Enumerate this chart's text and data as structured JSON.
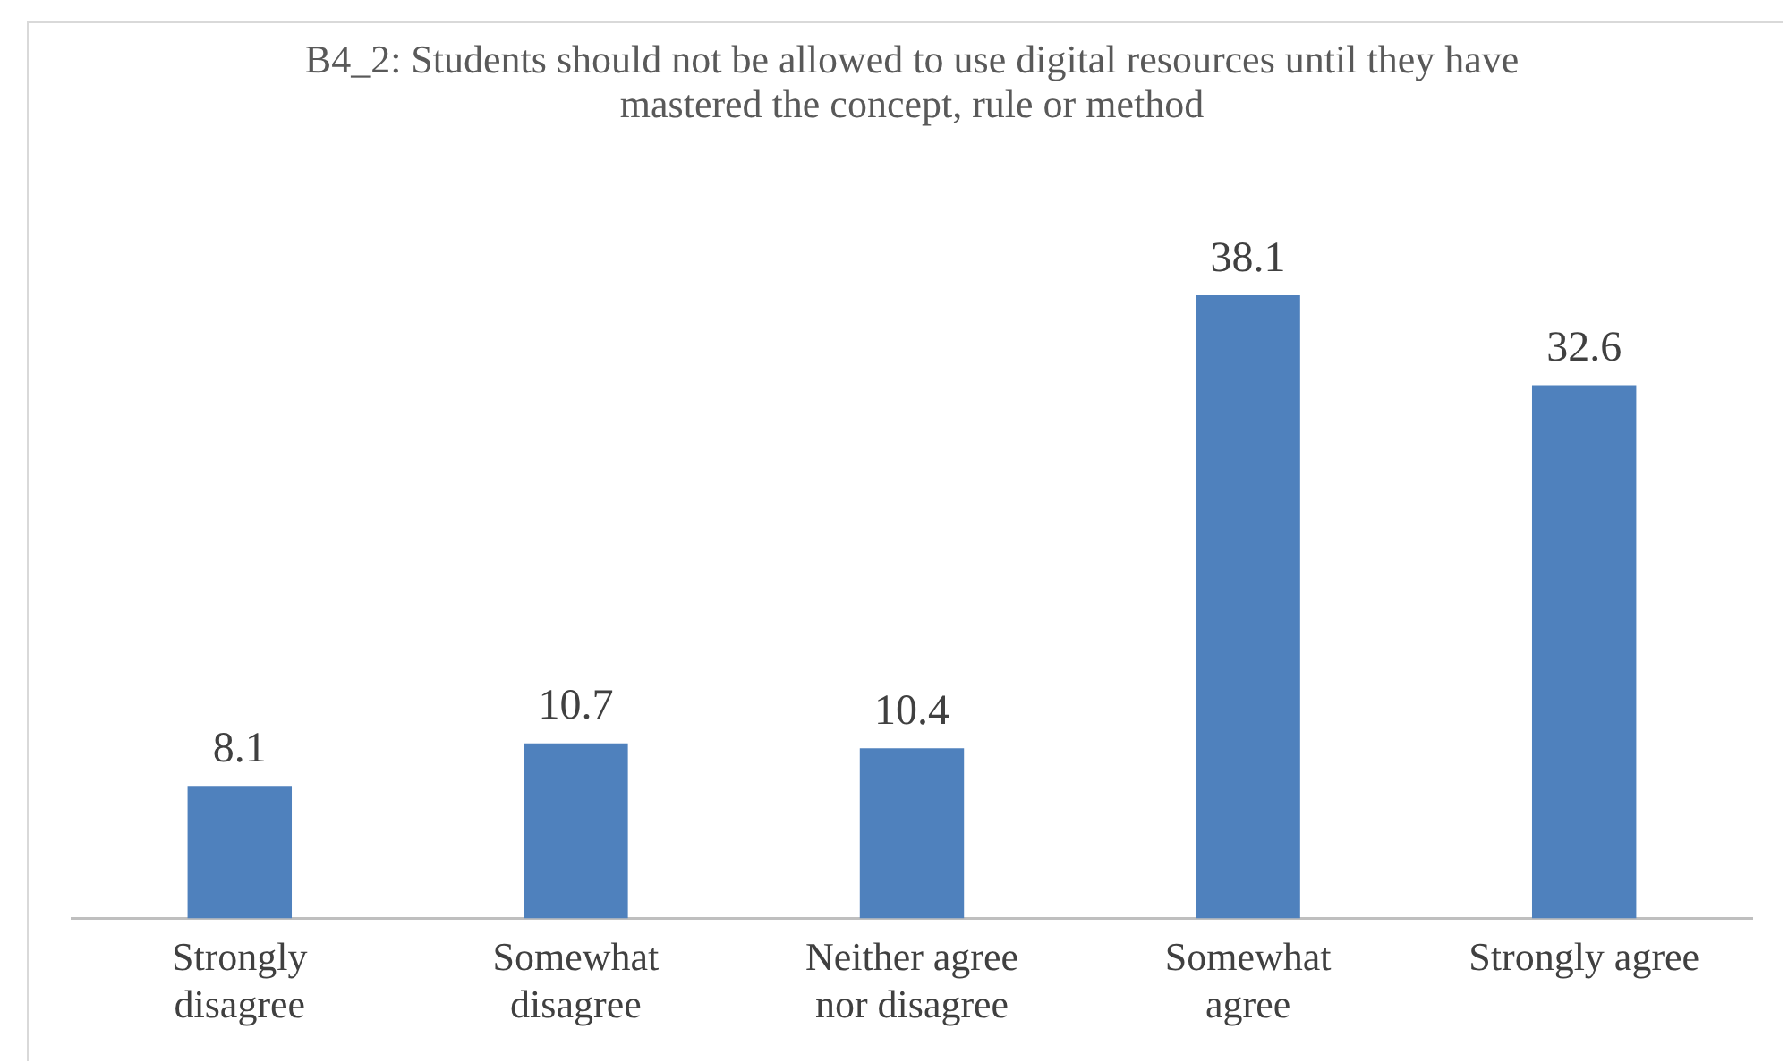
{
  "chart_data": {
    "type": "bar",
    "title": "B4_2: Students should not be allowed to use digital resources until they have mastered the concept, rule or method",
    "categories": [
      "Strongly disagree",
      "Somewhat disagree",
      "Neither agree nor disagree",
      "Somewhat agree",
      "Strongly agree"
    ],
    "values": [
      8.1,
      10.7,
      10.4,
      38.1,
      32.6
    ],
    "color": "#4f81bd",
    "data_labels": true,
    "grid": false,
    "legend": false
  }
}
